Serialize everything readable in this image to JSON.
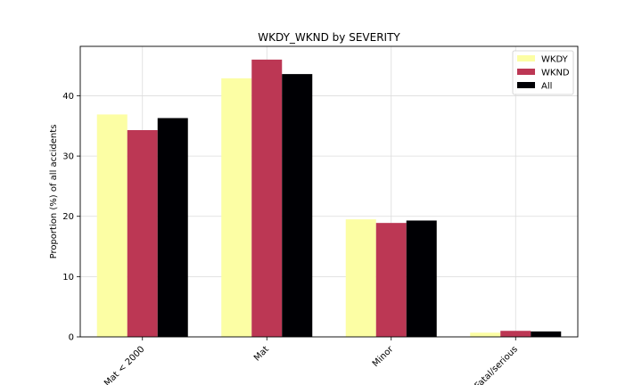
{
  "chart_data": {
    "type": "bar",
    "title": "WKDY_WKND by SEVERITY",
    "xlabel": "",
    "ylabel": "Proportion (%) of all accidents",
    "categories": [
      "Mat < 2000",
      "Mat",
      "Minor",
      "Fatal/serious"
    ],
    "series": [
      {
        "name": "WKDY",
        "values": [
          36.9,
          42.9,
          19.5,
          0.7
        ],
        "color": "#fcfea4"
      },
      {
        "name": "WKND",
        "values": [
          34.3,
          46.0,
          18.9,
          1.0
        ],
        "color": "#bc3754"
      },
      {
        "name": "All",
        "values": [
          36.3,
          43.6,
          19.3,
          0.9
        ],
        "color": "#000004"
      }
    ],
    "ylim": [
      0,
      48.2
    ],
    "yticks": [
      0,
      10,
      20,
      30,
      40
    ],
    "grid": true,
    "legend_position": "top-right",
    "xtick_rotation": 45
  }
}
